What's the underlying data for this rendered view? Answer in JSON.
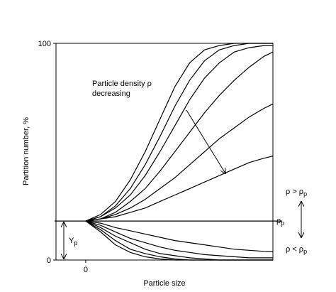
{
  "chart_data": {
    "type": "line",
    "x_label": "Particle size",
    "y_label": "Partition number, %",
    "xlim": [
      -1,
      6.3
    ],
    "xticks": [
      0
    ],
    "ylim": [
      0,
      100
    ],
    "yticks": [
      0,
      100
    ],
    "color": "#000000",
    "x": [
      0,
      0.5,
      1,
      1.5,
      2,
      2.5,
      3,
      3.5,
      4,
      4.5,
      5,
      5.5,
      6,
      6.3
    ],
    "series": [
      {
        "values": [
          18,
          21,
          27,
          37,
          50,
          65,
          80,
          91,
          97,
          99,
          100,
          100,
          100,
          100
        ]
      },
      {
        "values": [
          18,
          20,
          25,
          33,
          44,
          57,
          71,
          83,
          92,
          97,
          99,
          100,
          100,
          100
        ]
      },
      {
        "values": [
          18,
          20,
          24,
          30,
          39,
          50,
          62,
          74,
          84,
          91,
          96,
          98,
          99,
          99
        ]
      },
      {
        "values": [
          18,
          19,
          22,
          27,
          33,
          41,
          50,
          59,
          68,
          76,
          83,
          89,
          94,
          96
        ]
      },
      {
        "values": [
          18,
          19,
          21,
          24,
          28,
          33,
          38,
          44,
          50,
          56,
          61,
          66,
          70,
          72
        ]
      },
      {
        "values": [
          18,
          19,
          20,
          22,
          24,
          27,
          30,
          33,
          36,
          39,
          42,
          45,
          47,
          48
        ]
      },
      {
        "values": [
          18,
          17,
          15,
          13.5,
          12,
          10.5,
          9,
          8,
          7,
          6,
          5,
          4.5,
          4,
          3.8
        ]
      },
      {
        "values": [
          18,
          16,
          13,
          10,
          8,
          6,
          4.5,
          3.5,
          2.5,
          2,
          1.5,
          1,
          1,
          1
        ]
      },
      {
        "values": [
          18,
          15,
          11,
          8,
          5,
          3,
          2,
          1,
          0.5,
          0,
          0,
          0,
          0,
          0
        ]
      },
      {
        "values": [
          18,
          14,
          9,
          5,
          3,
          1.5,
          0.5,
          0,
          0,
          0,
          0,
          0,
          0,
          0
        ]
      },
      {
        "values": [
          18,
          13,
          7,
          3.5,
          1.5,
          0.5,
          0,
          0,
          0,
          0,
          0,
          0,
          0,
          0
        ]
      }
    ],
    "reference_line": 18,
    "annotation": [
      "Particle density ρ",
      "decreasing"
    ],
    "ref_labels": {
      "above": {
        "main": "ρ > ρ",
        "sub": "p"
      },
      "at": {
        "main": "ρ",
        "sub": "p"
      },
      "below": {
        "main": "ρ < ρ",
        "sub": "p"
      },
      "offset": {
        "main": "Y",
        "sub": "p"
      }
    }
  }
}
